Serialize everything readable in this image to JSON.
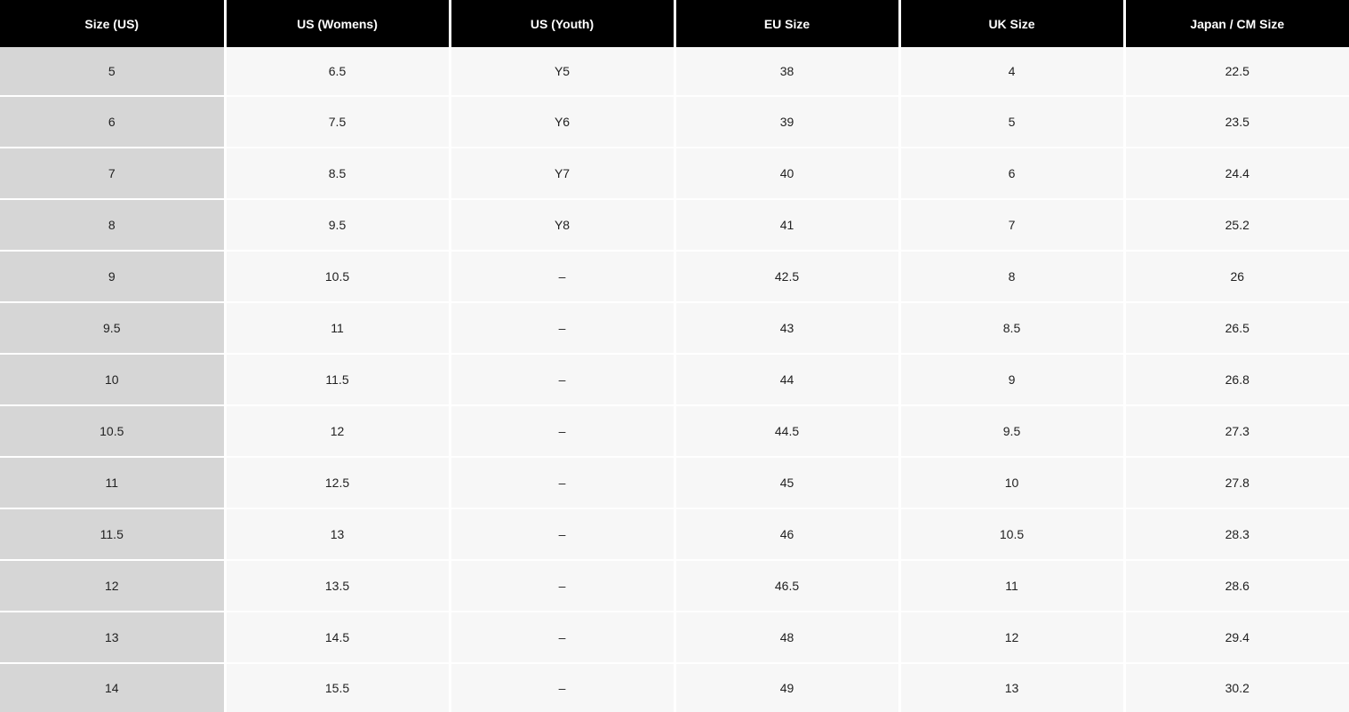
{
  "table": {
    "title": "shoe-size-conversion-chart",
    "columns": [
      {
        "label": "Size (US)",
        "key": "size-us"
      },
      {
        "label": "US (Womens)",
        "key": "us-womens"
      },
      {
        "label": "US (Youth)",
        "key": "us-youth"
      },
      {
        "label": "EU Size",
        "key": "eu-size"
      },
      {
        "label": "UK Size",
        "key": "uk-size"
      },
      {
        "label": "Japan / CM Size",
        "key": "japan-cm-size"
      }
    ],
    "rows": [
      [
        "5",
        "6.5",
        "Y5",
        "38",
        "4",
        "22.5"
      ],
      [
        "6",
        "7.5",
        "Y6",
        "39",
        "5",
        "23.5"
      ],
      [
        "7",
        "8.5",
        "Y7",
        "40",
        "6",
        "24.4"
      ],
      [
        "8",
        "9.5",
        "Y8",
        "41",
        "7",
        "25.2"
      ],
      [
        "9",
        "10.5",
        "–",
        "42.5",
        "8",
        "26"
      ],
      [
        "9.5",
        "11",
        "–",
        "43",
        "8.5",
        "26.5"
      ],
      [
        "10",
        "11.5",
        "–",
        "44",
        "9",
        "26.8"
      ],
      [
        "10.5",
        "12",
        "–",
        "44.5",
        "9.5",
        "27.3"
      ],
      [
        "11",
        "12.5",
        "–",
        "45",
        "10",
        "27.8"
      ],
      [
        "11.5",
        "13",
        "–",
        "46",
        "10.5",
        "28.3"
      ],
      [
        "12",
        "13.5",
        "–",
        "46.5",
        "11",
        "28.6"
      ],
      [
        "13",
        "14.5",
        "–",
        "48",
        "12",
        "29.4"
      ],
      [
        "14",
        "15.5",
        "–",
        "49",
        "13",
        "30.2"
      ]
    ],
    "colors": {
      "header_bg": "#000000",
      "header_text": "#ffffff",
      "first_col_bg": "#d6d6d6",
      "cell_bg": "#f7f7f7",
      "cell_text": "#212121",
      "separator": "#ffffff"
    }
  }
}
